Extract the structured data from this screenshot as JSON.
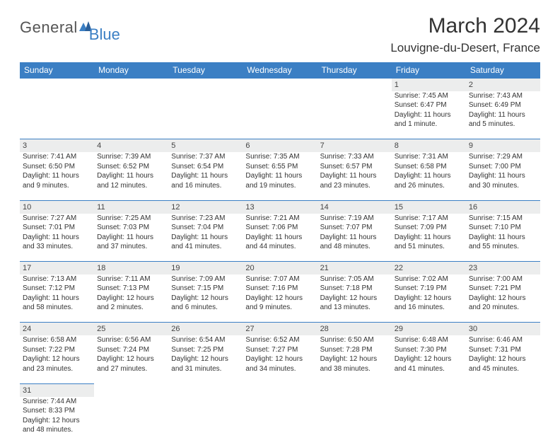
{
  "logo": {
    "part1": "General",
    "part2": "Blue"
  },
  "title": "March 2024",
  "location": "Louvigne-du-Desert, France",
  "colors": {
    "header_bg": "#3b7fc4",
    "daynum_bg": "#eceded",
    "text": "#333333"
  },
  "weekdays": [
    "Sunday",
    "Monday",
    "Tuesday",
    "Wednesday",
    "Thursday",
    "Friday",
    "Saturday"
  ],
  "weeks": [
    [
      null,
      null,
      null,
      null,
      null,
      {
        "n": "1",
        "sr": "Sunrise: 7:45 AM",
        "ss": "Sunset: 6:47 PM",
        "d1": "Daylight: 11 hours",
        "d2": "and 1 minute."
      },
      {
        "n": "2",
        "sr": "Sunrise: 7:43 AM",
        "ss": "Sunset: 6:49 PM",
        "d1": "Daylight: 11 hours",
        "d2": "and 5 minutes."
      }
    ],
    [
      {
        "n": "3",
        "sr": "Sunrise: 7:41 AM",
        "ss": "Sunset: 6:50 PM",
        "d1": "Daylight: 11 hours",
        "d2": "and 9 minutes."
      },
      {
        "n": "4",
        "sr": "Sunrise: 7:39 AM",
        "ss": "Sunset: 6:52 PM",
        "d1": "Daylight: 11 hours",
        "d2": "and 12 minutes."
      },
      {
        "n": "5",
        "sr": "Sunrise: 7:37 AM",
        "ss": "Sunset: 6:54 PM",
        "d1": "Daylight: 11 hours",
        "d2": "and 16 minutes."
      },
      {
        "n": "6",
        "sr": "Sunrise: 7:35 AM",
        "ss": "Sunset: 6:55 PM",
        "d1": "Daylight: 11 hours",
        "d2": "and 19 minutes."
      },
      {
        "n": "7",
        "sr": "Sunrise: 7:33 AM",
        "ss": "Sunset: 6:57 PM",
        "d1": "Daylight: 11 hours",
        "d2": "and 23 minutes."
      },
      {
        "n": "8",
        "sr": "Sunrise: 7:31 AM",
        "ss": "Sunset: 6:58 PM",
        "d1": "Daylight: 11 hours",
        "d2": "and 26 minutes."
      },
      {
        "n": "9",
        "sr": "Sunrise: 7:29 AM",
        "ss": "Sunset: 7:00 PM",
        "d1": "Daylight: 11 hours",
        "d2": "and 30 minutes."
      }
    ],
    [
      {
        "n": "10",
        "sr": "Sunrise: 7:27 AM",
        "ss": "Sunset: 7:01 PM",
        "d1": "Daylight: 11 hours",
        "d2": "and 33 minutes."
      },
      {
        "n": "11",
        "sr": "Sunrise: 7:25 AM",
        "ss": "Sunset: 7:03 PM",
        "d1": "Daylight: 11 hours",
        "d2": "and 37 minutes."
      },
      {
        "n": "12",
        "sr": "Sunrise: 7:23 AM",
        "ss": "Sunset: 7:04 PM",
        "d1": "Daylight: 11 hours",
        "d2": "and 41 minutes."
      },
      {
        "n": "13",
        "sr": "Sunrise: 7:21 AM",
        "ss": "Sunset: 7:06 PM",
        "d1": "Daylight: 11 hours",
        "d2": "and 44 minutes."
      },
      {
        "n": "14",
        "sr": "Sunrise: 7:19 AM",
        "ss": "Sunset: 7:07 PM",
        "d1": "Daylight: 11 hours",
        "d2": "and 48 minutes."
      },
      {
        "n": "15",
        "sr": "Sunrise: 7:17 AM",
        "ss": "Sunset: 7:09 PM",
        "d1": "Daylight: 11 hours",
        "d2": "and 51 minutes."
      },
      {
        "n": "16",
        "sr": "Sunrise: 7:15 AM",
        "ss": "Sunset: 7:10 PM",
        "d1": "Daylight: 11 hours",
        "d2": "and 55 minutes."
      }
    ],
    [
      {
        "n": "17",
        "sr": "Sunrise: 7:13 AM",
        "ss": "Sunset: 7:12 PM",
        "d1": "Daylight: 11 hours",
        "d2": "and 58 minutes."
      },
      {
        "n": "18",
        "sr": "Sunrise: 7:11 AM",
        "ss": "Sunset: 7:13 PM",
        "d1": "Daylight: 12 hours",
        "d2": "and 2 minutes."
      },
      {
        "n": "19",
        "sr": "Sunrise: 7:09 AM",
        "ss": "Sunset: 7:15 PM",
        "d1": "Daylight: 12 hours",
        "d2": "and 6 minutes."
      },
      {
        "n": "20",
        "sr": "Sunrise: 7:07 AM",
        "ss": "Sunset: 7:16 PM",
        "d1": "Daylight: 12 hours",
        "d2": "and 9 minutes."
      },
      {
        "n": "21",
        "sr": "Sunrise: 7:05 AM",
        "ss": "Sunset: 7:18 PM",
        "d1": "Daylight: 12 hours",
        "d2": "and 13 minutes."
      },
      {
        "n": "22",
        "sr": "Sunrise: 7:02 AM",
        "ss": "Sunset: 7:19 PM",
        "d1": "Daylight: 12 hours",
        "d2": "and 16 minutes."
      },
      {
        "n": "23",
        "sr": "Sunrise: 7:00 AM",
        "ss": "Sunset: 7:21 PM",
        "d1": "Daylight: 12 hours",
        "d2": "and 20 minutes."
      }
    ],
    [
      {
        "n": "24",
        "sr": "Sunrise: 6:58 AM",
        "ss": "Sunset: 7:22 PM",
        "d1": "Daylight: 12 hours",
        "d2": "and 23 minutes."
      },
      {
        "n": "25",
        "sr": "Sunrise: 6:56 AM",
        "ss": "Sunset: 7:24 PM",
        "d1": "Daylight: 12 hours",
        "d2": "and 27 minutes."
      },
      {
        "n": "26",
        "sr": "Sunrise: 6:54 AM",
        "ss": "Sunset: 7:25 PM",
        "d1": "Daylight: 12 hours",
        "d2": "and 31 minutes."
      },
      {
        "n": "27",
        "sr": "Sunrise: 6:52 AM",
        "ss": "Sunset: 7:27 PM",
        "d1": "Daylight: 12 hours",
        "d2": "and 34 minutes."
      },
      {
        "n": "28",
        "sr": "Sunrise: 6:50 AM",
        "ss": "Sunset: 7:28 PM",
        "d1": "Daylight: 12 hours",
        "d2": "and 38 minutes."
      },
      {
        "n": "29",
        "sr": "Sunrise: 6:48 AM",
        "ss": "Sunset: 7:30 PM",
        "d1": "Daylight: 12 hours",
        "d2": "and 41 minutes."
      },
      {
        "n": "30",
        "sr": "Sunrise: 6:46 AM",
        "ss": "Sunset: 7:31 PM",
        "d1": "Daylight: 12 hours",
        "d2": "and 45 minutes."
      }
    ],
    [
      {
        "n": "31",
        "sr": "Sunrise: 7:44 AM",
        "ss": "Sunset: 8:33 PM",
        "d1": "Daylight: 12 hours",
        "d2": "and 48 minutes."
      },
      null,
      null,
      null,
      null,
      null,
      null
    ]
  ]
}
